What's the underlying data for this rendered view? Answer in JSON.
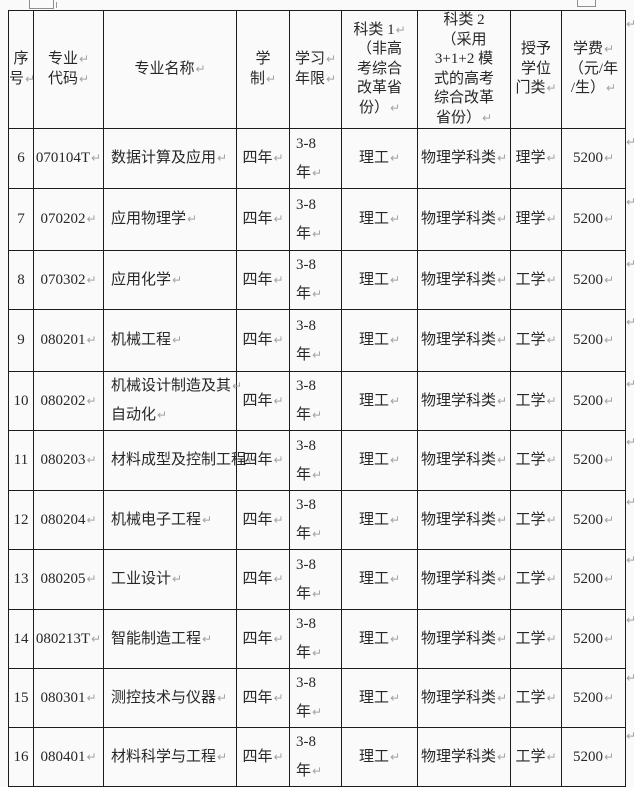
{
  "document": {
    "kind": "word-table-view",
    "return_mark": "↵"
  },
  "table": {
    "columns": [
      {
        "key": "index",
        "lines": [
          "序",
          "号↵"
        ]
      },
      {
        "key": "code",
        "lines": [
          "专业↵",
          "代码↵"
        ]
      },
      {
        "key": "name",
        "lines": [
          "专业名称↵"
        ]
      },
      {
        "key": "duration",
        "lines": [
          "学",
          "制↵"
        ]
      },
      {
        "key": "years",
        "lines": [
          "学习↵",
          "年限↵"
        ]
      },
      {
        "key": "category1",
        "lines": [
          "科类 1↵",
          "（非高",
          "考综合",
          "改革省",
          "份）↵"
        ]
      },
      {
        "key": "category2",
        "lines": [
          "科类 2",
          "（采用",
          "3+1+2 模",
          "式的高考",
          "综合改革",
          "省份）↵"
        ]
      },
      {
        "key": "degree",
        "lines": [
          "授予",
          "学位",
          "门类↵"
        ]
      },
      {
        "key": "tuition",
        "lines": [
          "学费↵",
          "（元/年",
          "/生）↵"
        ]
      }
    ],
    "rows": [
      {
        "index": "6",
        "code": "070104T↵",
        "name": [
          "数据计算及应用↵"
        ],
        "duration": "四年↵",
        "years": [
          "3-8",
          "年↵"
        ],
        "category1": "理工↵",
        "category2": "物理学科类↵",
        "degree": "理学↵",
        "tuition": "5200↵"
      },
      {
        "index": "7",
        "code": "070202↵",
        "name": [
          "应用物理学↵"
        ],
        "duration": "四年↵",
        "years": [
          "3-8",
          "年↵"
        ],
        "category1": "理工↵",
        "category2": "物理学科类↵",
        "degree": "理学↵",
        "tuition": "5200↵"
      },
      {
        "index": "8",
        "code": "070302↵",
        "name": [
          "应用化学↵"
        ],
        "duration": "四年↵",
        "years": [
          "3-8",
          "年↵"
        ],
        "category1": "理工↵",
        "category2": "物理学科类↵",
        "degree": "工学↵",
        "tuition": "5200↵"
      },
      {
        "index": "9",
        "code": "080201↵",
        "name": [
          "机械工程↵"
        ],
        "duration": "四年↵",
        "years": [
          "3-8",
          "年↵"
        ],
        "category1": "理工↵",
        "category2": "物理学科类↵",
        "degree": "工学↵",
        "tuition": "5200↵"
      },
      {
        "index": "10",
        "code": "080202↵",
        "name": [
          "机械设计制造及其↵",
          "自动化↵"
        ],
        "duration": "四年↵",
        "years": [
          "3-8",
          "年↵"
        ],
        "category1": "理工↵",
        "category2": "物理学科类↵",
        "degree": "工学↵",
        "tuition": "5200↵"
      },
      {
        "index": "11",
        "code": "080203↵",
        "name": [
          "材料成型及控制工程↵"
        ],
        "duration": "四年↵",
        "years": [
          "3-8",
          "年↵"
        ],
        "category1": "理工↵",
        "category2": "物理学科类↵",
        "degree": "工学↵",
        "tuition": "5200↵"
      },
      {
        "index": "12",
        "code": "080204↵",
        "name": [
          "机械电子工程↵"
        ],
        "duration": "四年↵",
        "years": [
          "3-8",
          "年↵"
        ],
        "category1": "理工↵",
        "category2": "物理学科类↵",
        "degree": "工学↵",
        "tuition": "5200↵"
      },
      {
        "index": "13",
        "code": "080205↵",
        "name": [
          "工业设计↵"
        ],
        "duration": "四年↵",
        "years": [
          "3-8",
          "年↵"
        ],
        "category1": "理工↵",
        "category2": "物理学科类↵",
        "degree": "工学↵",
        "tuition": "5200↵"
      },
      {
        "index": "14",
        "code": "080213T↵",
        "name": [
          "智能制造工程↵"
        ],
        "duration": "四年↵",
        "years": [
          "3-8",
          "年↵"
        ],
        "category1": "理工↵",
        "category2": "物理学科类↵",
        "degree": "工学↵",
        "tuition": "5200↵"
      },
      {
        "index": "15",
        "code": "080301↵",
        "name": [
          "测控技术与仪器↵"
        ],
        "duration": "四年↵",
        "years": [
          "3-8",
          "年↵"
        ],
        "category1": "理工↵",
        "category2": "物理学科类↵",
        "degree": "工学↵",
        "tuition": "5200↵"
      },
      {
        "index": "16",
        "code": "080401↵",
        "name": [
          "材料科学与工程↵"
        ],
        "duration": "四年↵",
        "years": [
          "3-8",
          "年↵"
        ],
        "category1": "理工↵",
        "category2": "物理学科类↵",
        "degree": "工学↵",
        "tuition": "5200↵"
      }
    ]
  },
  "colors": {
    "border": "#1c1c1c",
    "text": "#272727",
    "format_mark": "#a3a3a3",
    "page_background": "#fafafa"
  }
}
